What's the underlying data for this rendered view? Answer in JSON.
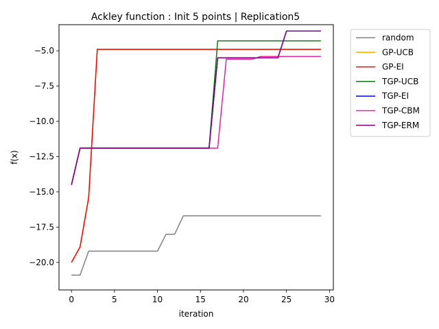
{
  "chart_data": {
    "type": "line",
    "title": "Ackley function : Init 5 points | Replication5",
    "xlabel": "iteration",
    "ylabel": "f(x)",
    "xlim": [
      -1.45,
      30.45
    ],
    "ylim": [
      -21.95,
      -3.15
    ],
    "xticks": [
      0,
      5,
      10,
      15,
      20,
      25,
      30
    ],
    "yticks": [
      -20.0,
      -17.5,
      -15.0,
      -12.5,
      -10.0,
      -7.5,
      -5.0
    ],
    "xtick_labels": [
      "0",
      "5",
      "10",
      "15",
      "20",
      "25",
      "30"
    ],
    "ytick_labels": [
      "−20.0",
      "−17.5",
      "−15.0",
      "−12.5",
      "−10.0",
      "−7.5",
      "−5.0"
    ],
    "grid": false,
    "legend_position": "outside-top-right",
    "series": [
      {
        "name": "random",
        "color": "#808080",
        "x": [
          0,
          1,
          2,
          3,
          4,
          5,
          6,
          7,
          8,
          9,
          10,
          11,
          12,
          13,
          14,
          15,
          16,
          17,
          18,
          19,
          20,
          21,
          22,
          23,
          24,
          25,
          26,
          27,
          28,
          29
        ],
        "y": [
          -20.9,
          -20.9,
          -19.2,
          -19.2,
          -19.2,
          -19.2,
          -19.2,
          -19.2,
          -19.2,
          -19.2,
          -19.2,
          -18.0,
          -18.0,
          -16.7,
          -16.7,
          -16.7,
          -16.7,
          -16.7,
          -16.7,
          -16.7,
          -16.7,
          -16.7,
          -16.7,
          -16.7,
          -16.7,
          -16.7,
          -16.7,
          -16.7,
          -16.7,
          -16.7
        ]
      },
      {
        "name": "GP-UCB",
        "color": "#ffa500",
        "x": [
          0,
          1,
          2,
          3,
          4,
          5,
          6,
          7,
          8,
          9,
          10,
          11,
          12,
          13,
          14,
          15,
          16,
          17,
          18,
          19,
          20,
          21,
          22,
          23,
          24,
          25,
          26,
          27,
          28,
          29
        ],
        "y": [
          -20.0,
          -18.9,
          -15.4,
          -4.9,
          -4.9,
          -4.9,
          -4.9,
          -4.9,
          -4.9,
          -4.9,
          -4.9,
          -4.9,
          -4.9,
          -4.9,
          -4.9,
          -4.9,
          -4.9,
          -4.9,
          -4.9,
          -4.9,
          -4.9,
          -4.9,
          -4.9,
          -4.9,
          -4.9,
          -4.9,
          -4.9,
          -4.9,
          -4.9,
          -4.9
        ]
      },
      {
        "name": "GP-EI",
        "color": "#ff0000",
        "x": [
          0,
          1,
          2,
          3,
          4,
          5,
          6,
          7,
          8,
          9,
          10,
          11,
          12,
          13,
          14,
          15,
          16,
          17,
          18,
          19,
          20,
          21,
          22,
          23,
          24,
          25,
          26,
          27,
          28,
          29
        ],
        "y": [
          -20.0,
          -18.9,
          -15.4,
          -4.9,
          -4.9,
          -4.9,
          -4.9,
          -4.9,
          -4.9,
          -4.9,
          -4.9,
          -4.9,
          -4.9,
          -4.9,
          -4.9,
          -4.9,
          -4.9,
          -4.9,
          -4.9,
          -4.9,
          -4.9,
          -4.9,
          -4.9,
          -4.9,
          -4.9,
          -4.9,
          -4.9,
          -4.9,
          -4.9,
          -4.9
        ]
      },
      {
        "name": "TGP-UCB",
        "color": "#008000",
        "x": [
          0,
          1,
          2,
          3,
          4,
          5,
          6,
          7,
          8,
          9,
          10,
          11,
          12,
          13,
          14,
          15,
          16,
          17,
          18,
          19,
          20,
          21,
          22,
          23,
          24,
          25,
          26,
          27,
          28,
          29
        ],
        "y": [
          -14.5,
          -11.9,
          -11.9,
          -11.9,
          -11.9,
          -11.9,
          -11.9,
          -11.9,
          -11.9,
          -11.9,
          -11.9,
          -11.9,
          -11.9,
          -11.9,
          -11.9,
          -11.9,
          -11.9,
          -4.3,
          -4.3,
          -4.3,
          -4.3,
          -4.3,
          -4.3,
          -4.3,
          -4.3,
          -4.3,
          -4.3,
          -4.3,
          -4.3,
          -4.3
        ]
      },
      {
        "name": "TGP-EI",
        "color": "#0000ff",
        "x": [
          0,
          1,
          2,
          3,
          4,
          5,
          6,
          7,
          8,
          9,
          10,
          11,
          12,
          13,
          14,
          15,
          16,
          17,
          18,
          19,
          20,
          21,
          22,
          23,
          24,
          25,
          26,
          27,
          28,
          29
        ],
        "y": [
          -14.5,
          -11.9,
          -11.9,
          -11.9,
          -11.9,
          -11.9,
          -11.9,
          -11.9,
          -11.9,
          -11.9,
          -11.9,
          -11.9,
          -11.9,
          -11.9,
          -11.9,
          -11.9,
          -11.9,
          -5.5,
          -5.5,
          -5.5,
          -5.5,
          -5.5,
          -5.5,
          -5.5,
          -5.5,
          -3.6,
          -3.6,
          -3.6,
          -3.6,
          -3.6
        ]
      },
      {
        "name": "TGP-CBM",
        "color": "#e6209e",
        "x": [
          0,
          1,
          2,
          3,
          4,
          5,
          6,
          7,
          8,
          9,
          10,
          11,
          12,
          13,
          14,
          15,
          16,
          17,
          18,
          19,
          20,
          21,
          22,
          23,
          24,
          25,
          26,
          27,
          28,
          29
        ],
        "y": [
          -14.5,
          -11.9,
          -11.9,
          -11.9,
          -11.9,
          -11.9,
          -11.9,
          -11.9,
          -11.9,
          -11.9,
          -11.9,
          -11.9,
          -11.9,
          -11.9,
          -11.9,
          -11.9,
          -11.9,
          -11.9,
          -5.6,
          -5.6,
          -5.6,
          -5.6,
          -5.4,
          -5.4,
          -5.4,
          -5.4,
          -5.4,
          -5.4,
          -5.4,
          -5.4
        ]
      },
      {
        "name": "TGP-ERM",
        "color": "#800080",
        "x": [
          0,
          1,
          2,
          3,
          4,
          5,
          6,
          7,
          8,
          9,
          10,
          11,
          12,
          13,
          14,
          15,
          16,
          17,
          18,
          19,
          20,
          21,
          22,
          23,
          24,
          25,
          26,
          27,
          28,
          29
        ],
        "y": [
          -14.5,
          -11.9,
          -11.9,
          -11.9,
          -11.9,
          -11.9,
          -11.9,
          -11.9,
          -11.9,
          -11.9,
          -11.9,
          -11.9,
          -11.9,
          -11.9,
          -11.9,
          -11.9,
          -11.9,
          -5.5,
          -5.5,
          -5.5,
          -5.5,
          -5.5,
          -5.5,
          -5.5,
          -5.5,
          -3.6,
          -3.6,
          -3.6,
          -3.6,
          -3.6
        ]
      }
    ]
  }
}
